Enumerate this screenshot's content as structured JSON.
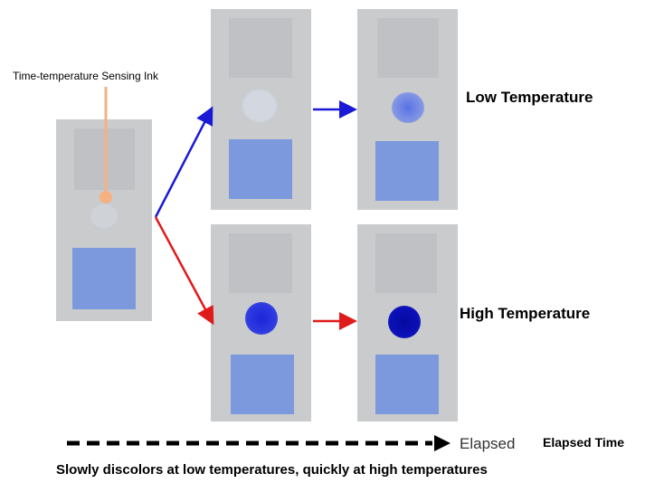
{
  "callout": {
    "label": "Time-temperature Sensing Ink"
  },
  "rows": {
    "low": {
      "label": "Low Temperature"
    },
    "high": {
      "label": "High Temperature"
    }
  },
  "timeline": {
    "arrow_text": "Elapsed",
    "label": "Elapsed Time"
  },
  "caption": "Slowly discolors at low temperatures, quickly at high temperatures",
  "colors": {
    "card": "#c9cbcd",
    "card_top": "#bfc1c4",
    "card_blue": "#7d99de",
    "low_arrow": "#1a1ad6",
    "high_arrow": "#e01b1b",
    "callout_line": "#f6b183",
    "ink_initial": "#cfd3d8",
    "ink_low_faint": "#d3d8e0",
    "ink_low_later": "#6f86e2",
    "ink_high_early": "#2430dc",
    "ink_high_later": "#0b10b8"
  },
  "icons": {
    "low_arrow": "arrow-right-icon",
    "high_arrow": "arrow-right-icon",
    "timeline_arrow": "dashed-arrow-right-icon"
  }
}
